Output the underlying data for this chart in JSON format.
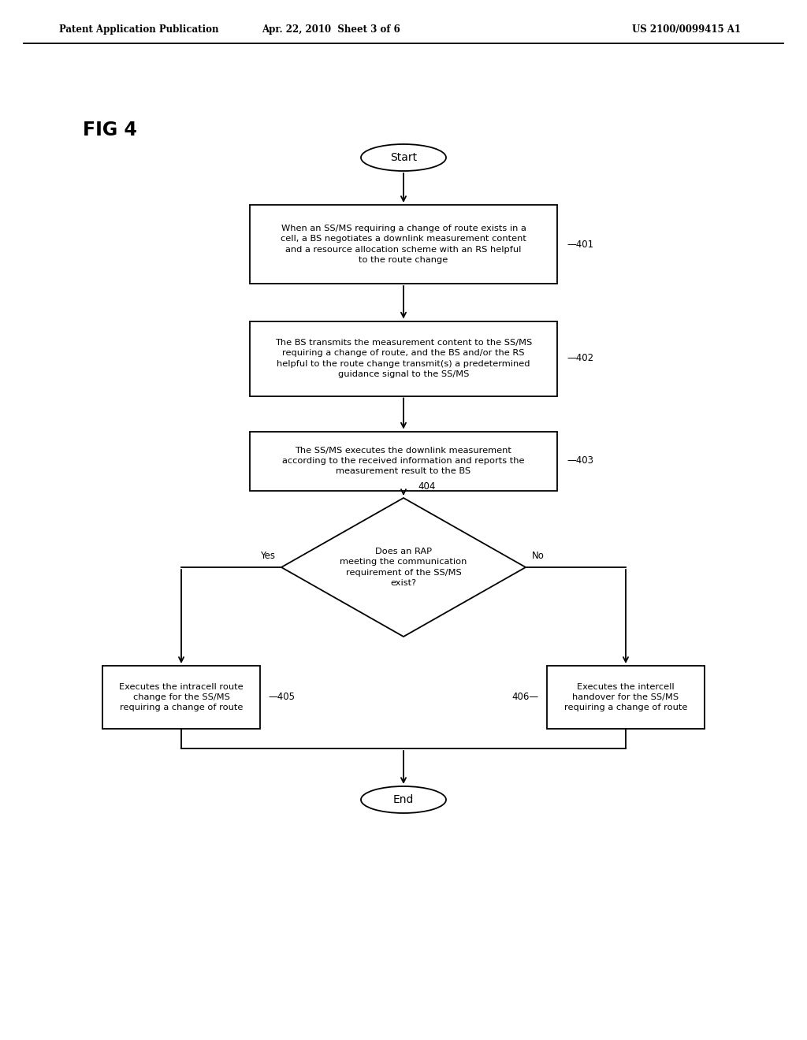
{
  "bg_color": "#ffffff",
  "header_left": "Patent Application Publication",
  "header_center": "Apr. 22, 2010  Sheet 3 of 6",
  "header_right": "US 2100/0099415 A1",
  "fig_label": "FIG 4",
  "start_text": "Start",
  "end_text": "End",
  "box401_text": "When an SS/MS requiring a change of route exists in a\ncell, a BS negotiates a downlink measurement content\nand a resource allocation scheme with an RS helpful\nto the route change",
  "box401_label": "401",
  "box402_text": "The BS transmits the measurement content to the SS/MS\nrequiring a change of route, and the BS and/or the RS\nhelpful to the route change transmit(s) a predetermined\nguidance signal to the SS/MS",
  "box402_label": "402",
  "box403_text": "The SS/MS executes the downlink measurement\naccording to the received information and reports the\nmeasurement result to the BS",
  "box403_label": "403",
  "diamond_text": "Does an RAP\nmeeting the communication\nrequirement of the SS/MS\nexist?",
  "diamond_label": "404",
  "yes_label": "Yes",
  "no_label": "No",
  "box405_text": "Executes the intracell route\nchange for the SS/MS\nrequiring a change of route",
  "box405_label": "405",
  "box406_text": "Executes the intercell\nhandover for the SS/MS\nrequiring a change of route",
  "box406_label": "406"
}
